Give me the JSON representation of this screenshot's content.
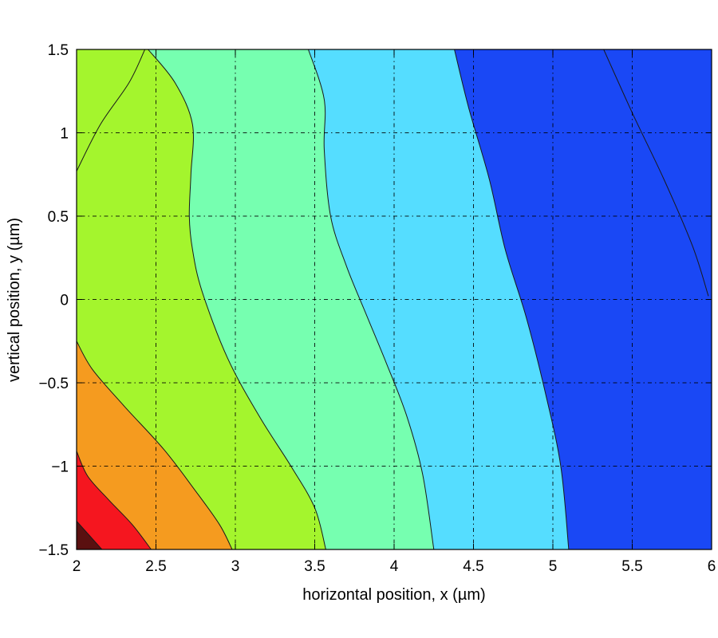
{
  "chart_data": {
    "type": "contour",
    "title": "",
    "xlabel": "horizontal position, x (µm)",
    "ylabel": "vertical position, y (µm)",
    "xlim": [
      2,
      6
    ],
    "ylim": [
      -1.5,
      1.5
    ],
    "xticks": [
      2,
      2.5,
      3,
      3.5,
      4,
      4.5,
      5,
      5.5,
      6
    ],
    "xtick_labels": [
      "2",
      "2.5",
      "3",
      "3.5",
      "4",
      "4.5",
      "5",
      "5.5",
      "6"
    ],
    "yticks": [
      1.5,
      1,
      0.5,
      0,
      -0.5,
      -1,
      -1.5
    ],
    "ytick_labels": [
      "1.5",
      "1",
      "0.5",
      "0",
      "−0.5",
      "−1",
      "−1.5"
    ],
    "grid": true,
    "background_color": "#1a48f5",
    "bands": [
      {
        "name": "band-dark-red",
        "color": "#5a1010",
        "boundary": [
          [
            2.0,
            -1.33
          ],
          [
            2.16,
            -1.5
          ]
        ]
      },
      {
        "name": "band-red",
        "color": "#f5161f",
        "boundary": [
          [
            2.0,
            -0.91
          ],
          [
            2.07,
            -1.06
          ],
          [
            2.2,
            -1.2
          ],
          [
            2.35,
            -1.35
          ],
          [
            2.47,
            -1.5
          ]
        ]
      },
      {
        "name": "band-orange",
        "color": "#f59b1f",
        "boundary": [
          [
            2.0,
            -0.25
          ],
          [
            2.1,
            -0.42
          ],
          [
            2.3,
            -0.64
          ],
          [
            2.55,
            -0.9
          ],
          [
            2.75,
            -1.15
          ],
          [
            2.9,
            -1.35
          ],
          [
            2.98,
            -1.5
          ]
        ]
      },
      {
        "name": "band-yellow-green",
        "color": "#a4f52d",
        "boundary": [
          [
            2.45,
            1.5
          ],
          [
            2.62,
            1.3
          ],
          [
            2.73,
            1.05
          ],
          [
            2.72,
            0.75
          ],
          [
            2.71,
            0.5
          ],
          [
            2.73,
            0.3
          ],
          [
            2.79,
            0.05
          ],
          [
            2.95,
            -0.35
          ],
          [
            3.15,
            -0.7
          ],
          [
            3.35,
            -1.0
          ],
          [
            3.5,
            -1.25
          ],
          [
            3.57,
            -1.5
          ]
        ]
      },
      {
        "name": "band-aqua-green",
        "color": "#76ffb0",
        "boundary": [
          [
            3.46,
            1.5
          ],
          [
            3.56,
            1.2
          ],
          [
            3.56,
            0.9
          ],
          [
            3.6,
            0.5
          ],
          [
            3.7,
            0.2
          ],
          [
            3.82,
            -0.08
          ],
          [
            3.95,
            -0.38
          ],
          [
            4.08,
            -0.7
          ],
          [
            4.18,
            -1.05
          ],
          [
            4.25,
            -1.5
          ]
        ]
      },
      {
        "name": "band-sky-blue",
        "color": "#55ddff",
        "boundary": [
          [
            4.38,
            1.5
          ],
          [
            4.47,
            1.15
          ],
          [
            4.6,
            0.72
          ],
          [
            4.7,
            0.3
          ],
          [
            4.83,
            -0.1
          ],
          [
            4.95,
            -0.55
          ],
          [
            5.05,
            -1.0
          ],
          [
            5.1,
            -1.5
          ]
        ]
      }
    ],
    "contour_lines": [
      {
        "name": "contour-line-upper-left",
        "points": [
          [
            2.0,
            0.77
          ],
          [
            2.15,
            1.05
          ],
          [
            2.33,
            1.3
          ],
          [
            2.43,
            1.5
          ]
        ]
      },
      {
        "name": "contour-line-upper-right",
        "points": [
          [
            5.32,
            1.5
          ],
          [
            5.5,
            1.12
          ],
          [
            5.7,
            0.72
          ],
          [
            5.88,
            0.32
          ],
          [
            5.98,
            0.02
          ]
        ]
      }
    ]
  }
}
